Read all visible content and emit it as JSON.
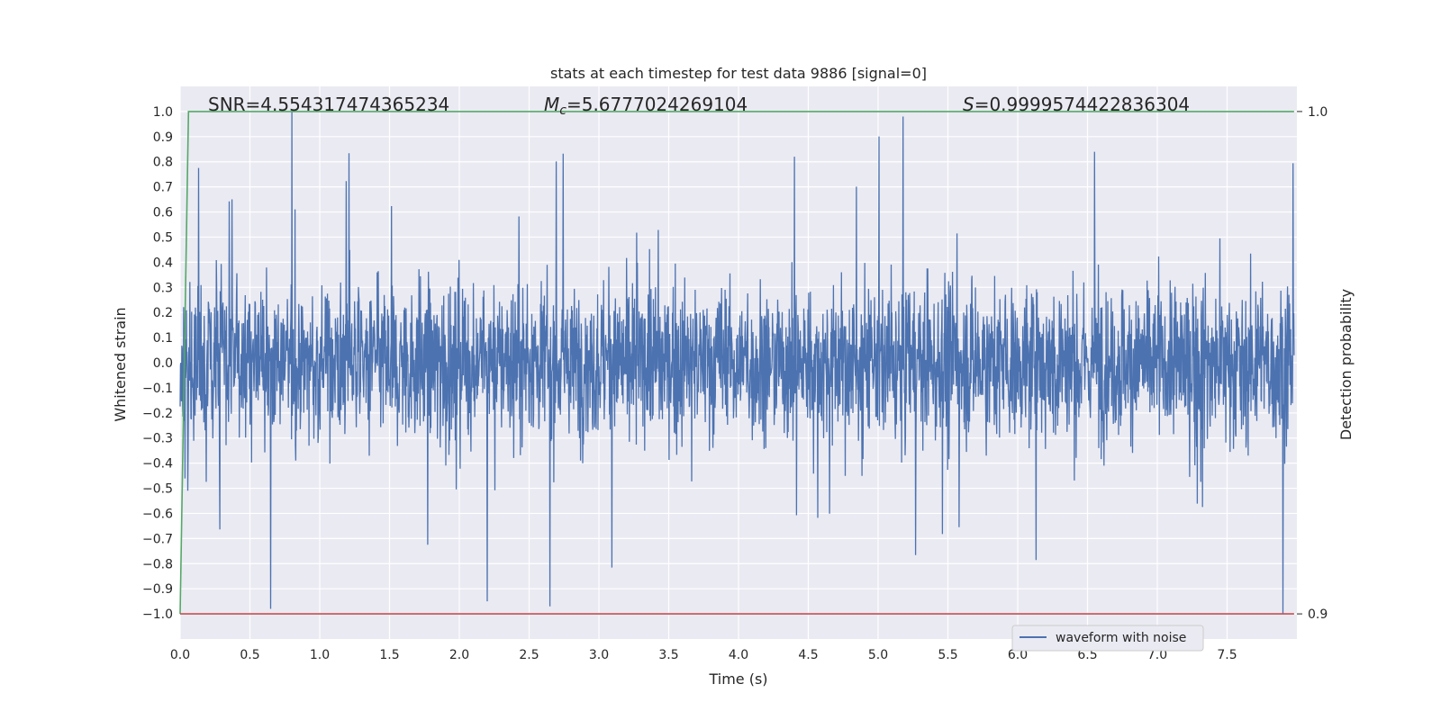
{
  "chart_data": {
    "type": "line",
    "title": "stats at each timestep for test data 9886 [signal=0]",
    "xlabel": "Time (s)",
    "ylabel": "Whitened strain",
    "y2label": "Detection probability",
    "xlim": [
      0.0,
      8.0
    ],
    "ylim": [
      -1.1,
      1.1
    ],
    "y2lim": [
      0.9,
      1.0
    ],
    "x_ticks": [
      "0.0",
      "0.5",
      "1.0",
      "1.5",
      "2.0",
      "2.5",
      "3.0",
      "3.5",
      "4.0",
      "4.5",
      "5.0",
      "5.5",
      "6.0",
      "6.5",
      "7.0",
      "7.5"
    ],
    "y_ticks": [
      "1.0",
      "0.9",
      "0.8",
      "0.7",
      "0.6",
      "0.5",
      "0.4",
      "0.3",
      "0.2",
      "0.1",
      "0.0",
      "−0.1",
      "−0.2",
      "−0.3",
      "−0.4",
      "−0.5",
      "−0.6",
      "−0.7",
      "−0.8",
      "−0.9",
      "−1.0"
    ],
    "y2_ticks": [
      "1.0",
      "0.9"
    ],
    "grid": true,
    "legend_position": "lower-right",
    "annotations": {
      "snr": "SNR=4.554317474365234",
      "mc_symbol": "M",
      "mc_sub": "c",
      "mc_value": "=5.6777024269104",
      "s_symbol": "S",
      "s_value": "=0.9999574422836304"
    },
    "series": [
      {
        "name": "waveform with noise",
        "color": "#4c72b0",
        "description_type": "noise",
        "x_range": [
          0.0,
          7.98
        ],
        "amplitude_envelope": 0.25,
        "peaks": [
          {
            "x": 0.8,
            "y": 1.0
          },
          {
            "x": 4.4,
            "y": 0.82
          },
          {
            "x": 6.55,
            "y": 0.84
          },
          {
            "x": 2.65,
            "y": -0.97
          },
          {
            "x": 2.2,
            "y": -0.95
          },
          {
            "x": 7.9,
            "y": -1.0
          }
        ]
      },
      {
        "name": "",
        "color": "#55a868",
        "axis": "y2",
        "x": [
          0.0,
          0.06,
          7.98
        ],
        "y": [
          0.9,
          1.0,
          1.0
        ]
      },
      {
        "name": "",
        "color": "#c44e52",
        "axis": "y1",
        "x": [
          0.0,
          7.98
        ],
        "y": [
          -1.0,
          -1.0
        ]
      }
    ],
    "colors": {
      "plot_bg": "#eaeaf2",
      "grid": "#ffffff",
      "text": "#262626"
    }
  }
}
